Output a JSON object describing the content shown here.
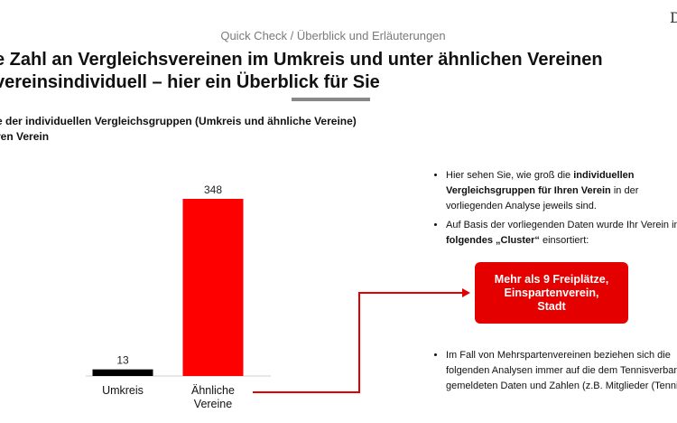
{
  "header": {
    "title": "Quick Check / Überblick und Erläuterungen",
    "logo_text": "D"
  },
  "headline": {
    "line1": "e Zahl an Vergleichsvereinen im Umkreis und unter ähnlichen Vereinen",
    "line2": "vereinsindividuell – hier ein Überblick für Sie"
  },
  "subheading": {
    "line1": "e der individuellen Vergleichsgruppen (Umkreis und ähnliche Vereine)",
    "line2": "ren Verein"
  },
  "chart_data": {
    "type": "bar",
    "categories": [
      "Umkreis",
      "Ähnliche\nVereine"
    ],
    "values": [
      13,
      348
    ],
    "data_labels": [
      "13",
      "348"
    ],
    "colors": [
      "#000000",
      "#ff0000"
    ],
    "ylim": [
      0,
      348
    ],
    "grid": false,
    "legend": "none"
  },
  "bullets_top": [
    {
      "text_pre": "Hier sehen Sie, wie groß die ",
      "text_bold": "individuellen Vergleichsgruppen für Ihren Verein",
      "text_post": " in der vorliegenden Analyse jeweils sind."
    },
    {
      "text_pre": "Auf Basis der vorliegenden Daten wurde Ihr Verein in ",
      "text_bold": "folgendes „Cluster“",
      "text_post": " einsortiert:"
    }
  ],
  "cluster_box": {
    "text": "Mehr als 9 Freiplätze,\nEinspartenverein,\nStadt",
    "color": "#e50000"
  },
  "bullets_bottom": [
    {
      "text": "Im Fall von Mehrspartenvereinen beziehen sich die folgenden Analysen immer auf die dem Tennisverband gemeldeten Daten und Zahlen (z.B. Mitglieder (Tennis))."
    }
  ]
}
